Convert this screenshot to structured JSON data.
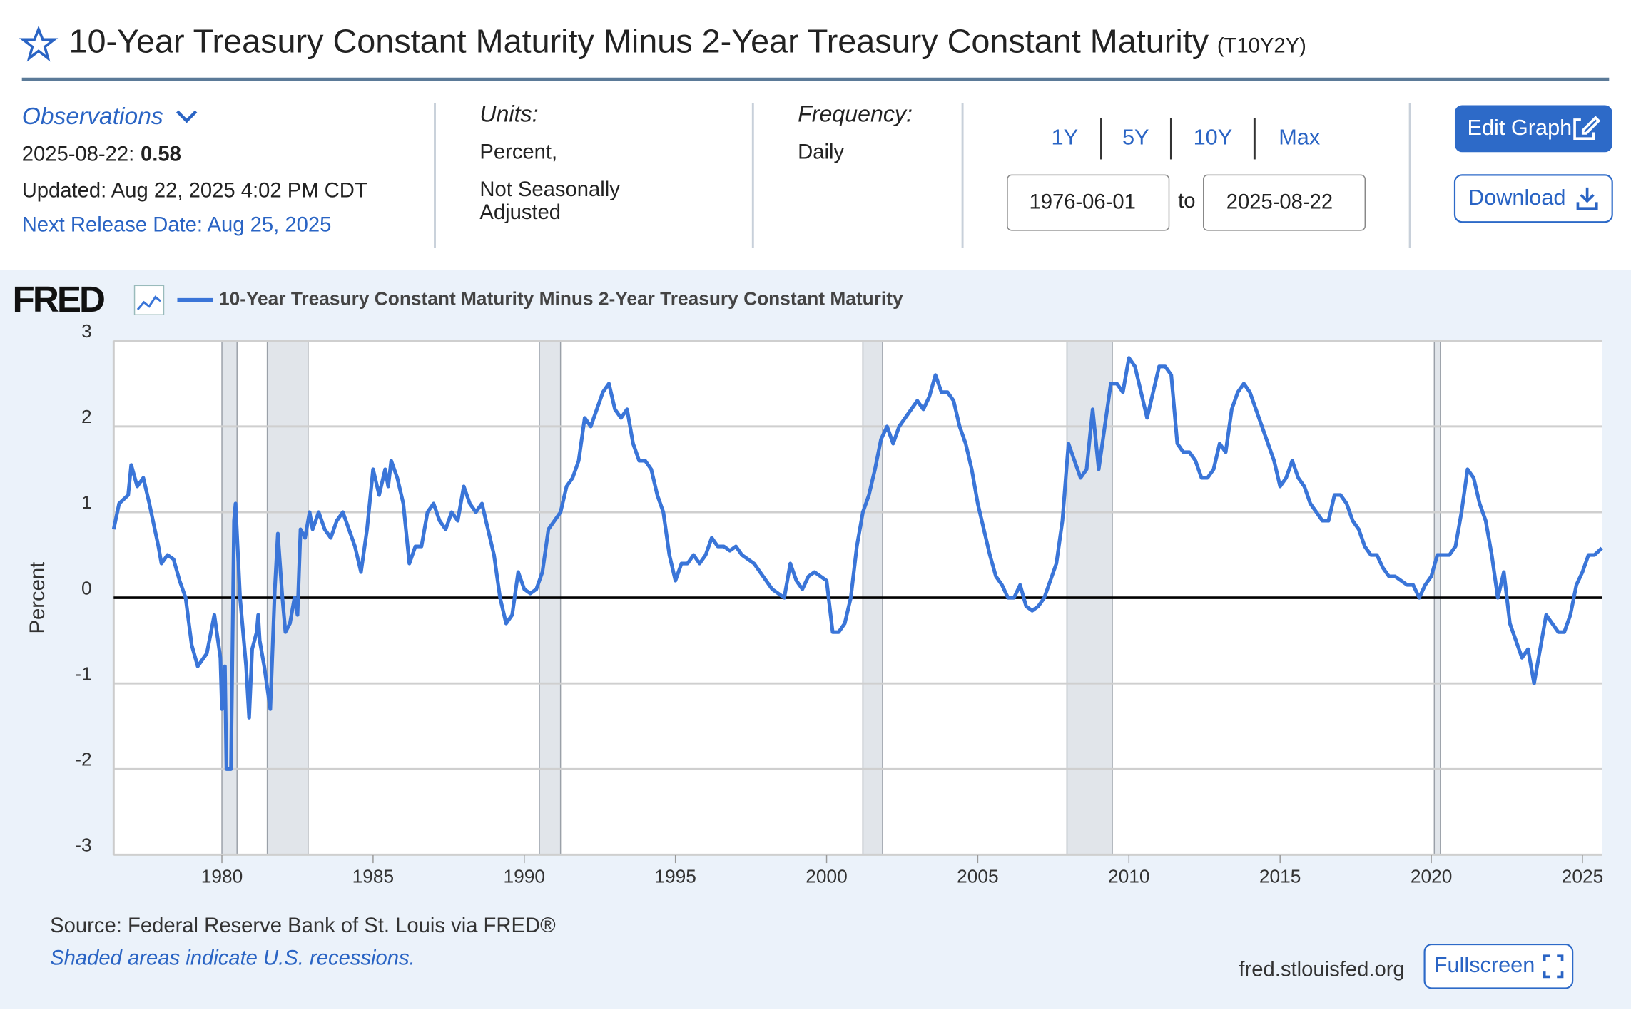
{
  "header": {
    "title": "10-Year Treasury Constant Maturity Minus 2-Year Treasury Constant Maturity",
    "series_id": "(T10Y2Y)"
  },
  "info": {
    "observations_label": "Observations",
    "latest_date": "2025-08-22:",
    "latest_value": "0.58",
    "updated": "Updated: Aug 22, 2025 4:02 PM CDT",
    "next_release": "Next Release Date: Aug 25, 2025",
    "units_label": "Units:",
    "units_lines": [
      "Percent,",
      "Not Seasonally",
      "Adjusted"
    ],
    "frequency_label": "Frequency:",
    "frequency": "Daily"
  },
  "range": {
    "buttons": [
      "1Y",
      "5Y",
      "10Y",
      "Max"
    ],
    "start": "1976-06-01",
    "to": "to",
    "end": "2025-08-22"
  },
  "actions": {
    "edit": "Edit Graph",
    "download": "Download",
    "fullscreen": "Fullscreen"
  },
  "footer": {
    "logo": "FRED",
    "source": "Source: Federal Reserve Bank of St. Louis via FRED®",
    "note": "Shaded areas indicate U.S. recessions.",
    "site": "fred.stlouisfed.org"
  },
  "chart_data": {
    "type": "line",
    "ylabel": "Percent",
    "grid": true,
    "xlim": [
      1976.42,
      2025.64
    ],
    "ylim": [
      -3,
      3
    ],
    "xticks": [
      1980,
      1985,
      1990,
      1995,
      2000,
      2005,
      2010,
      2015,
      2020,
      2025
    ],
    "yticks": [
      -3,
      -2,
      -1,
      0,
      1,
      2,
      3
    ],
    "recessions": [
      [
        1980.0,
        1980.5
      ],
      [
        1981.5,
        1982.85
      ],
      [
        1990.5,
        1991.2
      ],
      [
        2001.2,
        2001.85
      ],
      [
        2007.95,
        2009.45
      ],
      [
        2020.1,
        2020.3
      ]
    ],
    "x": [
      1976.42,
      1976.6,
      1976.9,
      1977.0,
      1977.2,
      1977.4,
      1977.6,
      1977.9,
      1978.0,
      1978.2,
      1978.4,
      1978.6,
      1978.8,
      1979.0,
      1979.2,
      1979.5,
      1979.75,
      1979.95,
      1980.0,
      1980.1,
      1980.15,
      1980.3,
      1980.4,
      1980.45,
      1980.6,
      1980.8,
      1980.9,
      1981.0,
      1981.15,
      1981.2,
      1981.25,
      1981.4,
      1981.6,
      1981.75,
      1981.85,
      1982.0,
      1982.1,
      1982.25,
      1982.4,
      1982.5,
      1982.6,
      1982.75,
      1982.9,
      1983.0,
      1983.2,
      1983.4,
      1983.6,
      1983.8,
      1984.0,
      1984.2,
      1984.4,
      1984.6,
      1984.8,
      1985.0,
      1985.2,
      1985.4,
      1985.5,
      1985.6,
      1985.8,
      1986.0,
      1986.2,
      1986.4,
      1986.6,
      1986.8,
      1987.0,
      1987.2,
      1987.4,
      1987.6,
      1987.8,
      1988.0,
      1988.2,
      1988.4,
      1988.6,
      1988.8,
      1989.0,
      1989.2,
      1989.4,
      1989.6,
      1989.8,
      1990.0,
      1990.2,
      1990.4,
      1990.6,
      1990.8,
      1991.0,
      1991.2,
      1991.4,
      1991.6,
      1991.8,
      1992.0,
      1992.2,
      1992.4,
      1992.6,
      1992.8,
      1993.0,
      1993.2,
      1993.4,
      1993.6,
      1993.8,
      1994.0,
      1994.2,
      1994.4,
      1994.6,
      1994.8,
      1995.0,
      1995.2,
      1995.4,
      1995.6,
      1995.8,
      1996.0,
      1996.2,
      1996.4,
      1996.6,
      1996.8,
      1997.0,
      1997.2,
      1997.4,
      1997.6,
      1997.8,
      1998.0,
      1998.2,
      1998.4,
      1998.6,
      1998.8,
      1999.0,
      1999.2,
      1999.4,
      1999.6,
      1999.8,
      2000.0,
      2000.2,
      2000.4,
      2000.6,
      2000.8,
      2001.0,
      2001.2,
      2001.4,
      2001.6,
      2001.8,
      2002.0,
      2002.2,
      2002.4,
      2002.6,
      2002.8,
      2003.0,
      2003.2,
      2003.4,
      2003.6,
      2003.8,
      2004.0,
      2004.2,
      2004.4,
      2004.6,
      2004.8,
      2005.0,
      2005.2,
      2005.4,
      2005.6,
      2005.8,
      2006.0,
      2006.2,
      2006.4,
      2006.6,
      2006.8,
      2007.0,
      2007.2,
      2007.4,
      2007.6,
      2007.8,
      2008.0,
      2008.2,
      2008.4,
      2008.6,
      2008.8,
      2009.0,
      2009.2,
      2009.4,
      2009.6,
      2009.8,
      2010.0,
      2010.2,
      2010.4,
      2010.6,
      2010.8,
      2011.0,
      2011.2,
      2011.4,
      2011.6,
      2011.8,
      2012.0,
      2012.2,
      2012.4,
      2012.6,
      2012.8,
      2013.0,
      2013.2,
      2013.4,
      2013.6,
      2013.8,
      2014.0,
      2014.2,
      2014.4,
      2014.6,
      2014.8,
      2015.0,
      2015.2,
      2015.4,
      2015.6,
      2015.8,
      2016.0,
      2016.2,
      2016.4,
      2016.6,
      2016.8,
      2017.0,
      2017.2,
      2017.4,
      2017.6,
      2017.8,
      2018.0,
      2018.2,
      2018.4,
      2018.6,
      2018.8,
      2019.0,
      2019.2,
      2019.4,
      2019.6,
      2019.8,
      2020.0,
      2020.2,
      2020.4,
      2020.6,
      2020.8,
      2021.0,
      2021.2,
      2021.4,
      2021.6,
      2021.8,
      2022.0,
      2022.2,
      2022.4,
      2022.6,
      2022.8,
      2023.0,
      2023.2,
      2023.4,
      2023.6,
      2023.8,
      2024.0,
      2024.2,
      2024.4,
      2024.6,
      2024.8,
      2025.0,
      2025.2,
      2025.4,
      2025.64
    ],
    "series": [
      {
        "name": "10-Year Treasury Constant Maturity Minus 2-Year Treasury Constant Maturity",
        "color": "#3a75d8",
        "values": [
          0.8,
          1.1,
          1.2,
          1.55,
          1.3,
          1.4,
          1.1,
          0.6,
          0.4,
          0.5,
          0.45,
          0.2,
          0.0,
          -0.55,
          -0.8,
          -0.65,
          -0.2,
          -0.7,
          -1.3,
          -0.8,
          -2.0,
          -2.0,
          0.9,
          1.1,
          0.0,
          -0.8,
          -1.4,
          -0.6,
          -0.4,
          -0.2,
          -0.5,
          -0.8,
          -1.3,
          0.1,
          0.75,
          0.0,
          -0.4,
          -0.3,
          0.0,
          -0.2,
          0.8,
          0.7,
          1.0,
          0.8,
          1.0,
          0.8,
          0.7,
          0.9,
          1.0,
          0.8,
          0.6,
          0.3,
          0.8,
          1.5,
          1.2,
          1.5,
          1.3,
          1.6,
          1.4,
          1.1,
          0.4,
          0.6,
          0.6,
          1.0,
          1.1,
          0.9,
          0.8,
          1.0,
          0.9,
          1.3,
          1.1,
          1.0,
          1.1,
          0.8,
          0.5,
          0.0,
          -0.3,
          -0.2,
          0.3,
          0.1,
          0.05,
          0.1,
          0.3,
          0.8,
          0.9,
          1.0,
          1.3,
          1.4,
          1.6,
          2.1,
          2.0,
          2.2,
          2.4,
          2.5,
          2.2,
          2.1,
          2.2,
          1.8,
          1.6,
          1.6,
          1.5,
          1.2,
          1.0,
          0.5,
          0.2,
          0.4,
          0.4,
          0.5,
          0.4,
          0.5,
          0.7,
          0.6,
          0.6,
          0.55,
          0.6,
          0.5,
          0.45,
          0.4,
          0.3,
          0.2,
          0.1,
          0.05,
          0.0,
          0.4,
          0.2,
          0.1,
          0.25,
          0.3,
          0.25,
          0.2,
          -0.4,
          -0.4,
          -0.3,
          0.0,
          0.6,
          1.0,
          1.2,
          1.5,
          1.85,
          2.0,
          1.8,
          2.0,
          2.1,
          2.2,
          2.3,
          2.2,
          2.35,
          2.6,
          2.4,
          2.4,
          2.3,
          2.0,
          1.8,
          1.5,
          1.1,
          0.8,
          0.5,
          0.25,
          0.15,
          0.0,
          0.0,
          0.15,
          -0.1,
          -0.15,
          -0.1,
          0.0,
          0.2,
          0.4,
          0.9,
          1.8,
          1.6,
          1.4,
          1.5,
          2.2,
          1.5,
          2.0,
          2.5,
          2.5,
          2.4,
          2.8,
          2.7,
          2.4,
          2.1,
          2.4,
          2.7,
          2.7,
          2.6,
          1.8,
          1.7,
          1.7,
          1.6,
          1.4,
          1.4,
          1.5,
          1.8,
          1.7,
          2.2,
          2.4,
          2.5,
          2.4,
          2.2,
          2.0,
          1.8,
          1.6,
          1.3,
          1.4,
          1.6,
          1.4,
          1.3,
          1.1,
          1.0,
          0.9,
          0.9,
          1.2,
          1.2,
          1.1,
          0.9,
          0.8,
          0.6,
          0.5,
          0.5,
          0.35,
          0.25,
          0.25,
          0.2,
          0.15,
          0.15,
          0.0,
          0.15,
          0.25,
          0.5,
          0.5,
          0.5,
          0.6,
          1.0,
          1.5,
          1.4,
          1.1,
          0.9,
          0.5,
          0.0,
          0.3,
          -0.3,
          -0.5,
          -0.7,
          -0.6,
          -1.0,
          -0.6,
          -0.2,
          -0.3,
          -0.4,
          -0.4,
          -0.2,
          0.15,
          0.3,
          0.5,
          0.5,
          0.58
        ]
      }
    ]
  }
}
